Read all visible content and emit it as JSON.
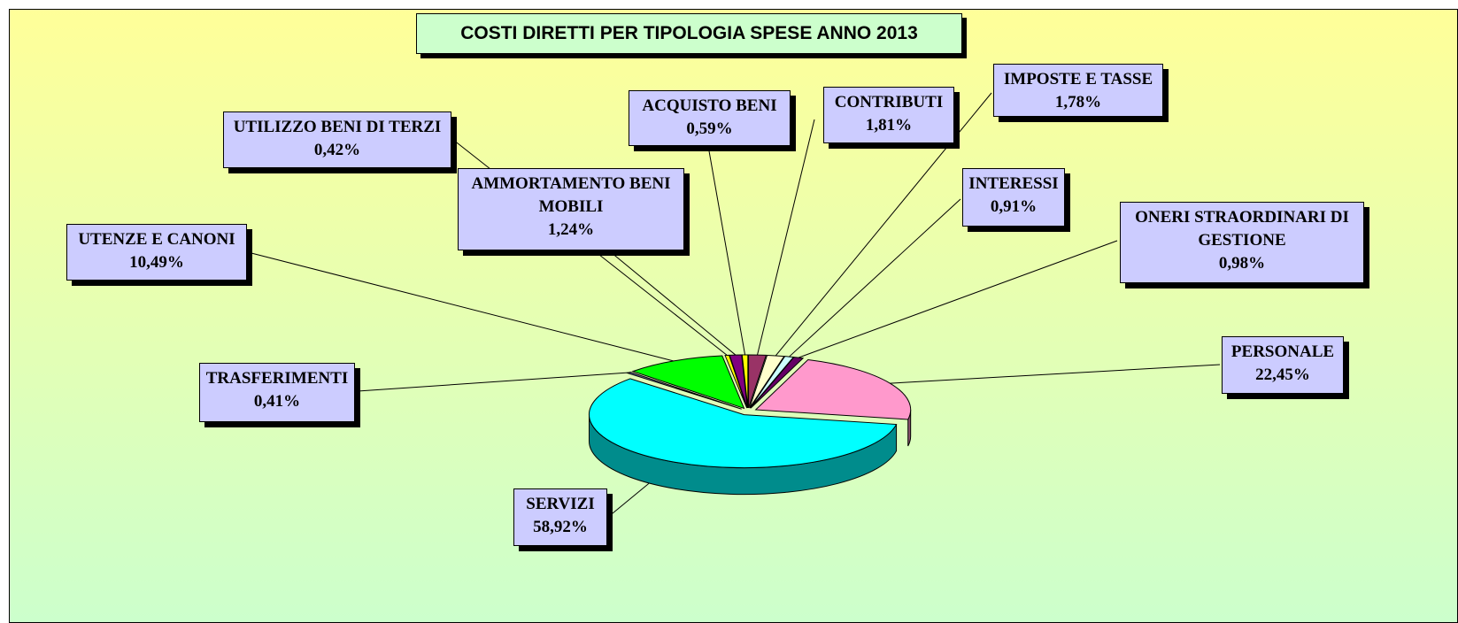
{
  "chart_data": {
    "type": "pie3d",
    "title": "COSTI DIRETTI PER TIPOLOGIA SPESE ANNO 2013",
    "categories": [
      "CONTRIBUTI",
      "IMPOSTE E TASSE",
      "INTERESSI",
      "ONERI STRAORDINARI DI GESTIONE",
      "PERSONALE",
      "SERVIZI",
      "TRASFERIMENTI",
      "UTENZE E CANONI",
      "UTILIZZO BENI DI TERZI",
      "AMMORTAMENTO BENI MOBILI",
      "ACQUISTO BENI"
    ],
    "values": [
      1.81,
      1.78,
      0.91,
      0.98,
      22.45,
      58.92,
      0.41,
      10.49,
      0.42,
      1.24,
      0.59
    ],
    "value_labels": [
      "1,81%",
      "1,78%",
      "0,91%",
      "0,98%",
      "22,45%",
      "58,92%",
      "0,41%",
      "10,49%",
      "0,42%",
      "1,24%",
      "0,59%"
    ],
    "colors": [
      "#993366",
      "#ffffcc",
      "#ccffff",
      "#660066",
      "#ff99cc",
      "#00ffff",
      "#666699",
      "#00ff00",
      "#ffff00",
      "#800080",
      "#ffff00"
    ]
  }
}
